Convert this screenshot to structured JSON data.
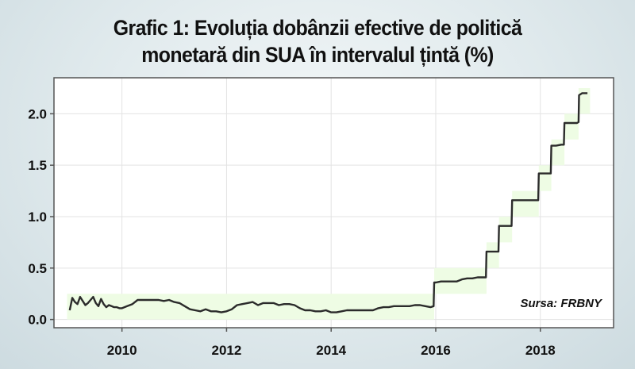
{
  "title": {
    "line1": "Grafic 1: Evoluția dobânzii efective de politică",
    "line2": "monetară din SUA în intervalul țintă (%)"
  },
  "source": "Sursa: FRBNY",
  "colors": {
    "line": "#2b2b2b",
    "band": "#eefce4",
    "grid": "#e3e3e3",
    "frame": "#555555"
  },
  "chart_data": {
    "type": "line",
    "title": "Grafic 1: Evoluția dobânzii efective de politică monetară din SUA în intervalul țintă (%)",
    "xlabel": "",
    "ylabel": "",
    "xlim": [
      2008.7,
      2019.4
    ],
    "ylim": [
      -0.08,
      2.35
    ],
    "x_ticks": [
      2010,
      2012,
      2014,
      2016,
      2018
    ],
    "y_ticks": [
      0.0,
      0.5,
      1.0,
      1.5,
      2.0
    ],
    "y_tick_labels": [
      "0.0",
      "0.5",
      "1.0",
      "1.5",
      "2.0"
    ],
    "grid": true,
    "series": [
      {
        "name": "",
        "x": [
          2009.0,
          2009.05,
          2009.1,
          2009.15,
          2009.2,
          2009.25,
          2009.3,
          2009.35,
          2009.4,
          2009.45,
          2009.5,
          2009.55,
          2009.6,
          2009.65,
          2009.7,
          2009.75,
          2009.8,
          2009.85,
          2009.9,
          2009.95,
          2010.0,
          2010.1,
          2010.2,
          2010.3,
          2010.4,
          2010.5,
          2010.6,
          2010.7,
          2010.8,
          2010.9,
          2011.0,
          2011.1,
          2011.2,
          2011.3,
          2011.4,
          2011.5,
          2011.6,
          2011.7,
          2011.8,
          2011.9,
          2012.0,
          2012.1,
          2012.2,
          2012.3,
          2012.4,
          2012.5,
          2012.6,
          2012.7,
          2012.8,
          2012.9,
          2013.0,
          2013.1,
          2013.2,
          2013.3,
          2013.4,
          2013.5,
          2013.6,
          2013.7,
          2013.8,
          2013.9,
          2014.0,
          2014.1,
          2014.2,
          2014.3,
          2014.4,
          2014.5,
          2014.6,
          2014.7,
          2014.8,
          2014.9,
          2015.0,
          2015.1,
          2015.2,
          2015.3,
          2015.4,
          2015.5,
          2015.6,
          2015.7,
          2015.8,
          2015.9,
          2015.96,
          2015.97,
          2016.0,
          2016.1,
          2016.2,
          2016.3,
          2016.4,
          2016.5,
          2016.6,
          2016.7,
          2016.8,
          2016.9,
          2016.96,
          2016.97,
          2017.0,
          2017.1,
          2017.2,
          2017.21,
          2017.3,
          2017.4,
          2017.45,
          2017.46,
          2017.5,
          2017.6,
          2017.7,
          2017.8,
          2017.9,
          2017.96,
          2017.97,
          2018.0,
          2018.1,
          2018.2,
          2018.21,
          2018.3,
          2018.4,
          2018.45,
          2018.46,
          2018.5,
          2018.6,
          2018.7,
          2018.73,
          2018.74,
          2018.8,
          2018.9
        ],
        "y": [
          0.09,
          0.21,
          0.17,
          0.15,
          0.22,
          0.18,
          0.14,
          0.16,
          0.19,
          0.22,
          0.16,
          0.13,
          0.2,
          0.15,
          0.12,
          0.14,
          0.13,
          0.12,
          0.12,
          0.11,
          0.11,
          0.13,
          0.15,
          0.19,
          0.19,
          0.19,
          0.19,
          0.19,
          0.18,
          0.19,
          0.17,
          0.16,
          0.13,
          0.1,
          0.09,
          0.08,
          0.1,
          0.08,
          0.08,
          0.07,
          0.08,
          0.1,
          0.14,
          0.15,
          0.16,
          0.17,
          0.14,
          0.16,
          0.16,
          0.16,
          0.14,
          0.15,
          0.15,
          0.14,
          0.11,
          0.09,
          0.09,
          0.08,
          0.08,
          0.09,
          0.07,
          0.07,
          0.08,
          0.09,
          0.09,
          0.09,
          0.09,
          0.09,
          0.09,
          0.11,
          0.12,
          0.12,
          0.13,
          0.13,
          0.13,
          0.13,
          0.14,
          0.14,
          0.13,
          0.12,
          0.13,
          0.36,
          0.36,
          0.37,
          0.37,
          0.37,
          0.37,
          0.39,
          0.4,
          0.4,
          0.41,
          0.41,
          0.41,
          0.66,
          0.66,
          0.66,
          0.66,
          0.91,
          0.91,
          0.91,
          0.91,
          1.16,
          1.16,
          1.16,
          1.16,
          1.16,
          1.16,
          1.16,
          1.42,
          1.42,
          1.42,
          1.42,
          1.69,
          1.69,
          1.7,
          1.7,
          1.91,
          1.91,
          1.91,
          1.91,
          1.92,
          2.18,
          2.2,
          2.2
        ]
      }
    ],
    "band": {
      "x": [
        2008.95,
        2015.97,
        2015.97,
        2016.97,
        2016.97,
        2017.21,
        2017.21,
        2017.46,
        2017.46,
        2017.97,
        2017.97,
        2018.21,
        2018.21,
        2018.46,
        2018.46,
        2018.73,
        2018.73,
        2018.95
      ],
      "lower": [
        0,
        0,
        0.25,
        0.25,
        0.5,
        0.5,
        0.75,
        0.75,
        1.0,
        1.0,
        1.25,
        1.25,
        1.5,
        1.5,
        1.75,
        1.75,
        2.0,
        2.0
      ],
      "upper": [
        0.25,
        0.25,
        0.5,
        0.5,
        0.75,
        0.75,
        1.0,
        1.0,
        1.25,
        1.25,
        1.5,
        1.5,
        1.75,
        1.75,
        2.0,
        2.0,
        2.25,
        2.25
      ]
    }
  }
}
